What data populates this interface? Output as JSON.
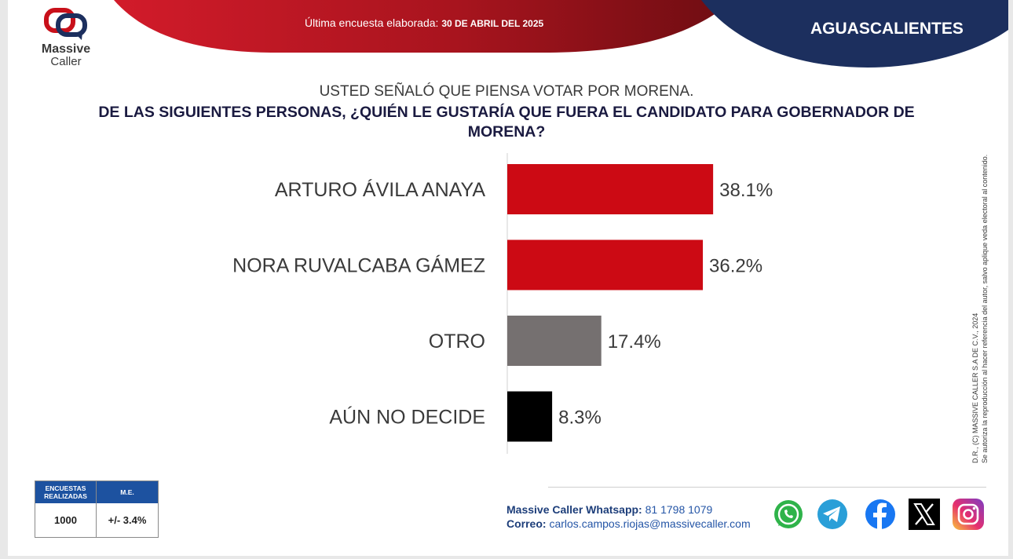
{
  "header": {
    "brand_line1": "Massive",
    "brand_line2": "Caller",
    "date_label": "Última encuesta elaborada:",
    "date_value": "30 DE ABRIL DEL 2025",
    "state": "AGUASCALIENTES"
  },
  "subtitle": "USTED SEÑALÓ QUE PIENSA VOTAR POR MORENA.",
  "question": "DE LAS SIGUIENTES PERSONAS, ¿QUIÉN LE GUSTARÍA QUE FUERA EL CANDIDATO PARA GOBERNADOR DE MORENA?",
  "chart_data": {
    "type": "bar",
    "orientation": "horizontal",
    "categories": [
      "ARTURO ÁVILA ANAYA",
      "NORA RUVALCABA GÁMEZ",
      "OTRO",
      "AÚN NO DECIDE"
    ],
    "values": [
      38.1,
      36.2,
      17.4,
      8.3
    ],
    "value_labels": [
      "38.1%",
      "36.2%",
      "17.4%",
      "8.3%"
    ],
    "colors": [
      "#cc0a14",
      "#cc0a14",
      "#757070",
      "#000000"
    ],
    "xlim": [
      0,
      50
    ],
    "grid": false,
    "legend": "none"
  },
  "stats": {
    "surveys_header_1": "ENCUESTAS",
    "surveys_header_2": "REALIZADAS",
    "margin_header": "M.E.",
    "surveys_value": "1000",
    "margin_value": "+/- 3.4%"
  },
  "contact": {
    "whatsapp_label": "Massive Caller Whatsapp:",
    "whatsapp_value": "81 1798 1079",
    "email_label": "Correo:",
    "email_value": "carlos.campos.riojas@massivecaller.com"
  },
  "copyright": {
    "line1": "D.R., (C) MASSIVE CALLER S.A DE C.V., 2024",
    "line2": "Se autoriza la reproducción al hacer referencia del autor, salvo aplique veda electoral al contenido."
  },
  "social_icons": [
    "whatsapp-icon",
    "telegram-icon",
    "facebook-icon",
    "x-icon",
    "instagram-icon"
  ],
  "colors": {
    "accent_red": "#cc0a14",
    "navy": "#1c2f5e",
    "table_blue": "#1d52a0"
  }
}
